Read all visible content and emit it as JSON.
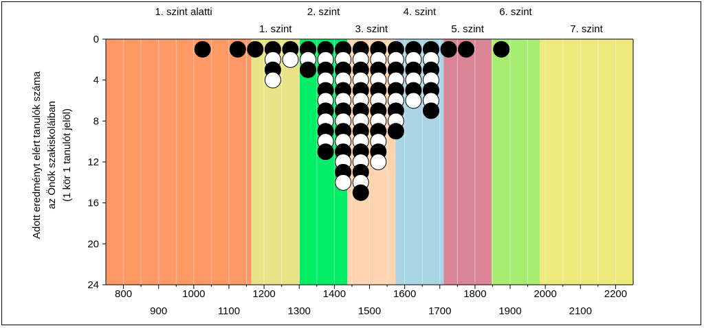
{
  "chart_data": {
    "type": "scatter",
    "subtype": "stacked-dot-histogram",
    "ylabel_lines": [
      "Adott eredményt elért tanulók száma",
      "az Önök szakiskoláiban",
      "(1 kör 1 tanulót jelöl)"
    ],
    "xlim": [
      750,
      2250
    ],
    "ylim": [
      0,
      24
    ],
    "y_inverted": true,
    "y_ticks": [
      "0",
      "4",
      "8",
      "12",
      "16",
      "20",
      "24"
    ],
    "x_ticks_row1": [
      "800",
      "1000",
      "1200",
      "1400",
      "1600",
      "1800",
      "2000",
      "2200"
    ],
    "x_ticks_row2": [
      "900",
      "1100",
      "1300",
      "1500",
      "1700",
      "1900",
      "2100"
    ],
    "levels": [
      {
        "name": "1. szint alatti",
        "from": 750,
        "to": 1164,
        "color": "#ff9966",
        "label_row": "top"
      },
      {
        "name": "1. szint",
        "from": 1164,
        "to": 1301,
        "color": "#e8e387",
        "label_row": "second"
      },
      {
        "name": "2. szint",
        "from": 1301,
        "to": 1437,
        "color": "#00ee66",
        "label_row": "top"
      },
      {
        "name": "3. szint",
        "from": 1437,
        "to": 1574,
        "color": "#ffd4b0",
        "label_row": "second"
      },
      {
        "name": "4. szint",
        "from": 1574,
        "to": 1711,
        "color": "#a8d4e4",
        "label_row": "top"
      },
      {
        "name": "5. szint",
        "from": 1711,
        "to": 1847,
        "color": "#d98595",
        "label_row": "second"
      },
      {
        "name": "6. szint",
        "from": 1847,
        "to": 1984,
        "color": "#a6ec70",
        "label_row": "top"
      },
      {
        "name": "7. szint",
        "from": 1984,
        "to": 2250,
        "color": "#ede97a",
        "label_row": "second"
      }
    ],
    "dot_colors": {
      "black": "#000000",
      "white": "#ffffff"
    },
    "dots": [
      {
        "x": 1025,
        "count": 1
      },
      {
        "x": 1125,
        "count": 1
      },
      {
        "x": 1175,
        "count": 1
      },
      {
        "x": 1225,
        "count": 4
      },
      {
        "x": 1275,
        "count": 2
      },
      {
        "x": 1325,
        "count": 3
      },
      {
        "x": 1375,
        "count": 11
      },
      {
        "x": 1425,
        "count": 14
      },
      {
        "x": 1475,
        "count": 15
      },
      {
        "x": 1525,
        "count": 12
      },
      {
        "x": 1575,
        "count": 9
      },
      {
        "x": 1625,
        "count": 6
      },
      {
        "x": 1675,
        "count": 7
      },
      {
        "x": 1725,
        "count": 1
      },
      {
        "x": 1775,
        "count": 1
      },
      {
        "x": 1875,
        "count": 1
      }
    ],
    "grid_x_step": 50,
    "grid": true
  }
}
